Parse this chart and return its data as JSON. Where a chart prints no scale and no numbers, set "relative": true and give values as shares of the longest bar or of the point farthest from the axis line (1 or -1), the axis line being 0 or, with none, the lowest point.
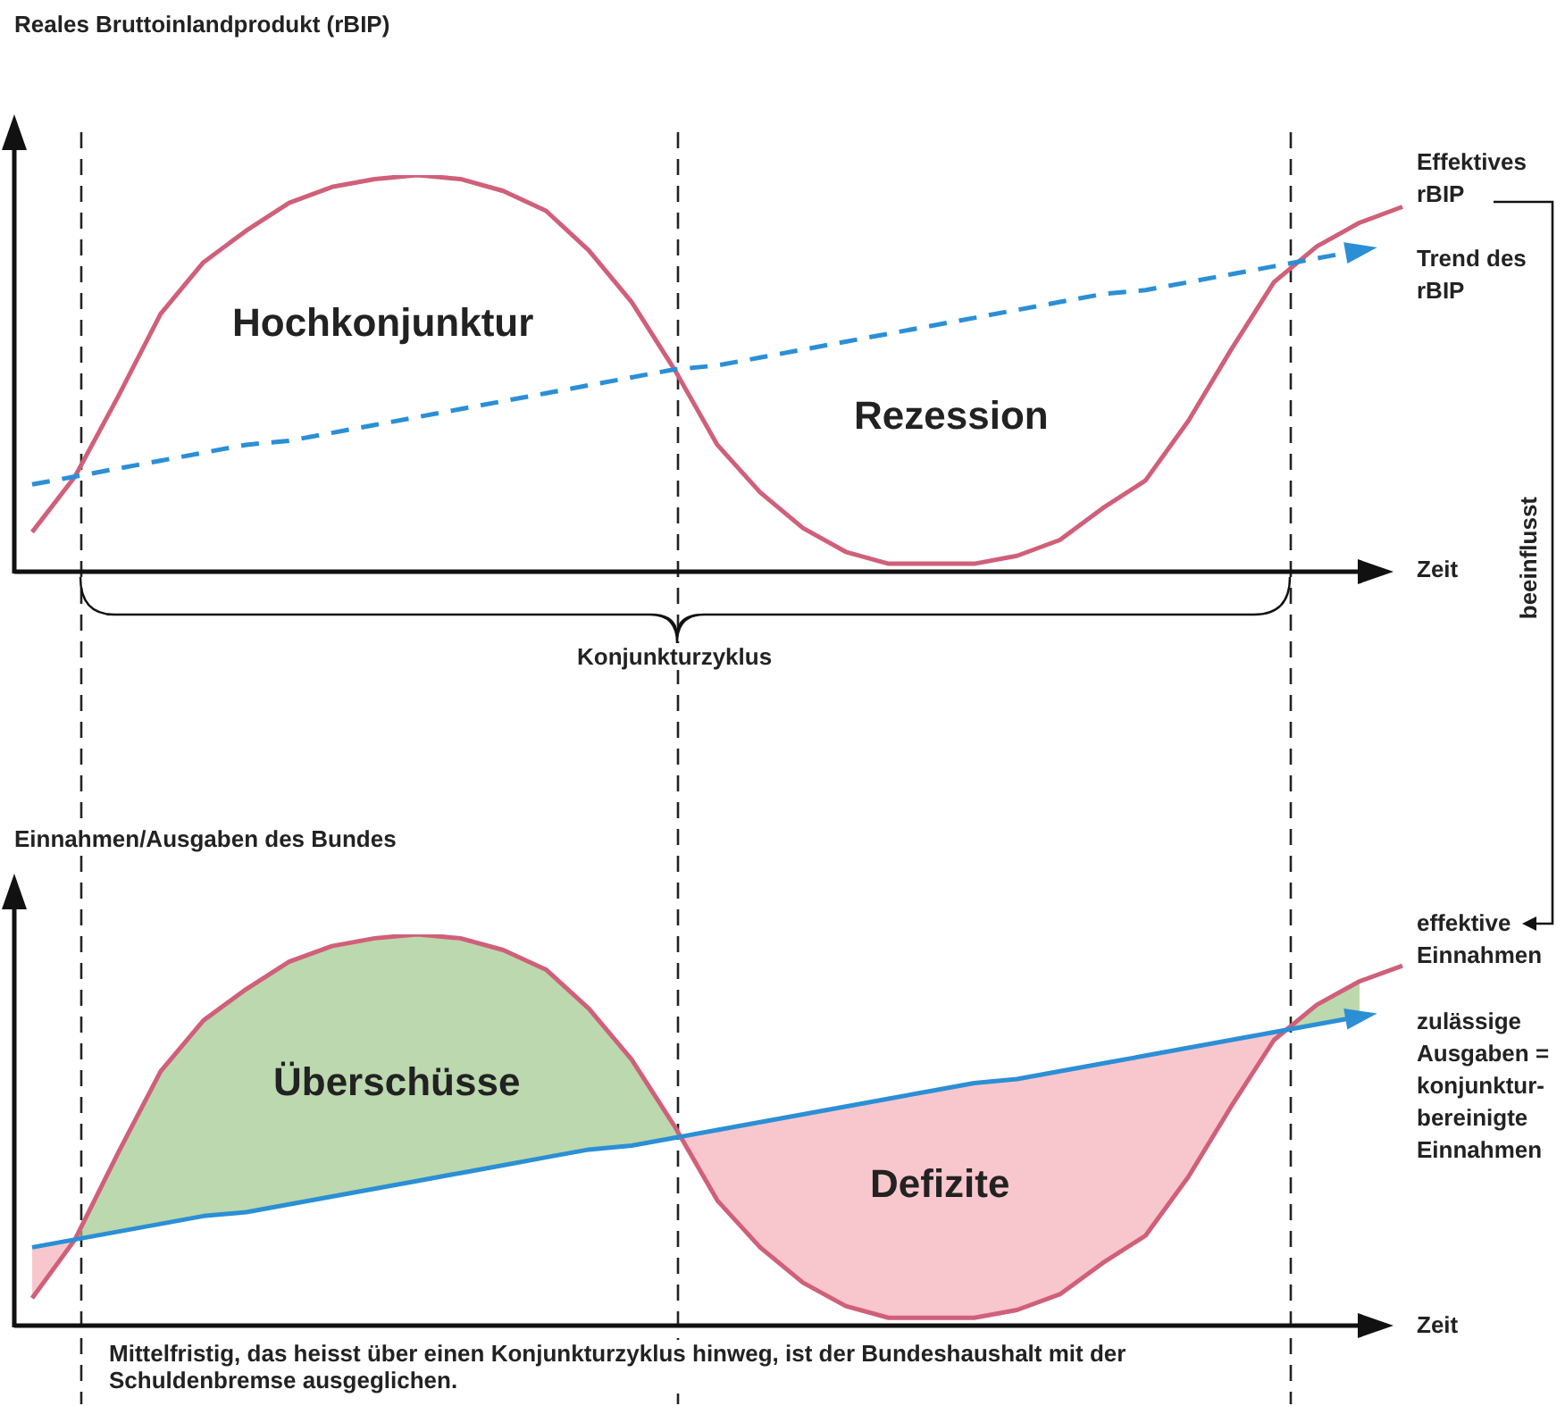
{
  "chart_data": [
    {
      "type": "line",
      "relative": true,
      "ylabel": "Reales Bruttoinlandprodukt (rBIP)",
      "xlabel": "Zeit",
      "legend": "right",
      "marker": "none",
      "categories": [
        null,
        null,
        null,
        null,
        null,
        null,
        null,
        null,
        null,
        null,
        null,
        null,
        null,
        null,
        null,
        null,
        null,
        null,
        null,
        null,
        null,
        null,
        null,
        null,
        null,
        null,
        null,
        null,
        null,
        null,
        null,
        null,
        null
      ],
      "series": [
        {
          "name": "Effektives rBIP",
          "color": "#d0607a",
          "values": [
            0.1,
            0.24,
            0.44,
            0.65,
            0.78,
            0.86,
            0.93,
            0.97,
            0.99,
            1,
            0.99,
            0.96,
            0.91,
            0.81,
            0.68,
            0.51,
            0.32,
            0.2,
            0.11,
            0.05,
            0.02,
            0.02,
            0.02,
            0.04,
            0.08,
            0.16,
            0.23,
            0.38,
            0.56,
            0.73,
            0.82,
            0.88,
            0.92
          ]
        },
        {
          "name": "Trend des rBIP",
          "color": "#2b8fd6",
          "line_style": "dashed",
          "values": [
            0.22,
            0.24,
            0.26,
            0.28,
            0.3,
            0.32,
            0.33,
            0.35,
            0.37,
            0.39,
            0.41,
            0.43,
            0.45,
            0.47,
            0.49,
            0.51,
            0.52,
            0.54,
            0.56,
            0.58,
            0.6,
            0.62,
            0.64,
            0.66,
            0.68,
            0.7,
            0.71,
            0.73,
            0.75,
            0.77,
            0.79,
            0.81,
            null
          ]
        }
      ],
      "annotations": [
        "Hochkonjunktur",
        "Rezession",
        "Konjunkturzyklus",
        "beeinflusst"
      ]
    },
    {
      "type": "line",
      "relative": true,
      "ylabel": "Einnahmen/Ausgaben des Bundes",
      "xlabel": "Zeit",
      "legend": "right",
      "marker": "none",
      "categories": [
        null,
        null,
        null,
        null,
        null,
        null,
        null,
        null,
        null,
        null,
        null,
        null,
        null,
        null,
        null,
        null,
        null,
        null,
        null,
        null,
        null,
        null,
        null,
        null,
        null,
        null,
        null,
        null,
        null,
        null,
        null,
        null,
        null
      ],
      "series": [
        {
          "name": "effektive Einnahmen",
          "color": "#d0607a",
          "values": [
            0.07,
            0.22,
            0.44,
            0.65,
            0.78,
            0.86,
            0.93,
            0.97,
            0.99,
            1,
            0.99,
            0.96,
            0.91,
            0.81,
            0.68,
            0.51,
            0.32,
            0.2,
            0.11,
            0.05,
            0.02,
            0.02,
            0.02,
            0.04,
            0.08,
            0.16,
            0.23,
            0.38,
            0.56,
            0.73,
            0.82,
            0.88,
            0.92
          ],
          "upper": [
            0.07,
            0.22,
            0.44,
            0.65,
            0.78,
            0.86,
            0.93,
            0.97,
            0.99,
            1,
            0.99,
            0.96,
            0.91,
            0.81,
            0.68,
            0.51,
            0.32,
            0.2,
            0.11,
            0.05,
            0.02,
            0.02,
            0.02,
            0.04,
            0.08,
            0.16,
            0.23,
            0.38,
            0.56,
            0.73,
            0.82,
            0.88,
            null
          ],
          "lower": [
            0.2,
            0.22,
            0.24,
            0.26,
            0.28,
            0.29,
            0.31,
            0.33,
            0.35,
            0.37,
            0.39,
            0.41,
            0.43,
            0.45,
            0.46,
            0.48,
            0.5,
            0.52,
            0.54,
            0.56,
            0.58,
            0.6,
            0.62,
            0.63,
            0.65,
            0.67,
            0.69,
            0.71,
            0.73,
            0.75,
            0.77,
            0.79,
            null
          ]
        },
        {
          "name": "zulässige Ausgaben = konjunktur-bereinigte Einnahmen",
          "color": "#2b8fd6",
          "values": [
            0.2,
            0.22,
            0.24,
            0.26,
            0.28,
            0.29,
            0.31,
            0.33,
            0.35,
            0.37,
            0.39,
            0.41,
            0.43,
            0.45,
            0.46,
            0.48,
            0.5,
            0.52,
            0.54,
            0.56,
            0.58,
            0.6,
            0.62,
            0.63,
            0.65,
            0.67,
            0.69,
            0.71,
            0.73,
            0.75,
            0.77,
            0.79,
            null
          ]
        }
      ],
      "annotations": [
        "Überschüsse",
        "Defizite",
        "Mittelfristig, das heisst über einen Konjunkturzyklus hinweg, ist der Bundeshaushalt mit der Schuldenbremse ausgeglichen."
      ]
    }
  ]
}
